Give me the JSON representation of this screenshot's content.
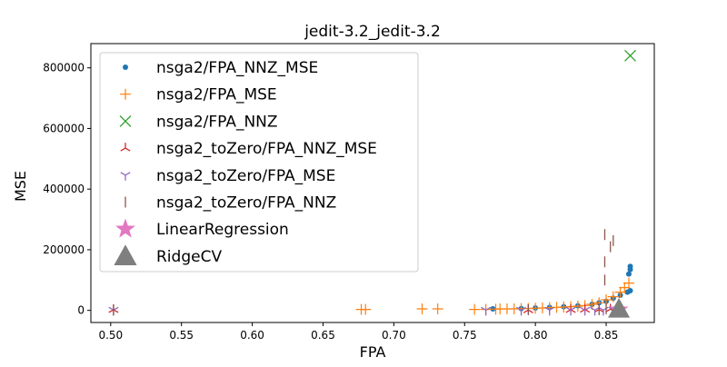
{
  "chart_data": {
    "type": "scatter",
    "title": "jedit-3.2_jedit-3.2",
    "xlabel": "FPA",
    "ylabel": "MSE",
    "xlim": [
      0.486,
      0.884
    ],
    "ylim": [
      -40000,
      880000
    ],
    "xticks": [
      0.5,
      0.55,
      0.6,
      0.65,
      0.7,
      0.75,
      0.8,
      0.85
    ],
    "xtick_labels": [
      "0.50",
      "0.55",
      "0.60",
      "0.65",
      "0.70",
      "0.75",
      "0.80",
      "0.85"
    ],
    "yticks": [
      0,
      200000,
      400000,
      600000,
      800000
    ],
    "ytick_labels": [
      "0",
      "200000",
      "400000",
      "600000",
      "800000"
    ],
    "grid": false,
    "legend_position": "upper-left",
    "series": [
      {
        "name": "nsga2/FPA_NNZ_MSE",
        "marker": "circle",
        "color": "#1f77b4",
        "points": [
          [
            0.77,
            5000
          ],
          [
            0.79,
            6000
          ],
          [
            0.8,
            8000
          ],
          [
            0.81,
            10000
          ],
          [
            0.82,
            12000
          ],
          [
            0.83,
            15000
          ],
          [
            0.84,
            20000
          ],
          [
            0.845,
            25000
          ],
          [
            0.85,
            30000
          ],
          [
            0.855,
            40000
          ],
          [
            0.86,
            50000
          ],
          [
            0.865,
            60000
          ],
          [
            0.867,
            65000
          ],
          [
            0.866,
            120000
          ],
          [
            0.867,
            135000
          ],
          [
            0.867,
            145000
          ]
        ]
      },
      {
        "name": "nsga2/FPA_MSE",
        "marker": "plus",
        "color": "#ff7f0e",
        "points": [
          [
            0.677,
            3000
          ],
          [
            0.68,
            3000
          ],
          [
            0.72,
            5000
          ],
          [
            0.731,
            5000
          ],
          [
            0.757,
            3000
          ],
          [
            0.765,
            3000
          ],
          [
            0.772,
            4000
          ],
          [
            0.775,
            5000
          ],
          [
            0.78,
            5000
          ],
          [
            0.785,
            5000
          ],
          [
            0.79,
            6000
          ],
          [
            0.795,
            6000
          ],
          [
            0.8,
            7000
          ],
          [
            0.805,
            8000
          ],
          [
            0.81,
            9000
          ],
          [
            0.815,
            10000
          ],
          [
            0.82,
            11000
          ],
          [
            0.825,
            12000
          ],
          [
            0.83,
            14000
          ],
          [
            0.835,
            16000
          ],
          [
            0.84,
            20000
          ],
          [
            0.845,
            25000
          ],
          [
            0.85,
            35000
          ],
          [
            0.855,
            45000
          ],
          [
            0.86,
            60000
          ],
          [
            0.863,
            75000
          ],
          [
            0.866,
            90000
          ]
        ]
      },
      {
        "name": "nsga2/FPA_NNZ",
        "marker": "x",
        "color": "#2ca02c",
        "points": [
          [
            0.867,
            840000
          ]
        ]
      },
      {
        "name": "nsga2_toZero/FPA_NNZ_MSE",
        "marker": "tri_down",
        "color": "#d62728",
        "points": [
          [
            0.502,
            2000
          ],
          [
            0.795,
            1000
          ],
          [
            0.825,
            2000
          ],
          [
            0.835,
            3000
          ],
          [
            0.845,
            3000
          ],
          [
            0.853,
            4000
          ]
        ]
      },
      {
        "name": "nsga2_toZero/FPA_MSE",
        "marker": "tri_up",
        "color": "#9467bd",
        "points": [
          [
            0.502,
            1000
          ],
          [
            0.765,
            1000
          ],
          [
            0.79,
            1000
          ],
          [
            0.81,
            1000
          ],
          [
            0.825,
            1000
          ],
          [
            0.835,
            1000
          ],
          [
            0.842,
            1000
          ],
          [
            0.848,
            1000
          ],
          [
            0.855,
            2000
          ],
          [
            0.86,
            2000
          ]
        ]
      },
      {
        "name": "nsga2_toZero/FPA_NNZ",
        "marker": "vline",
        "color": "#8c564b",
        "points": [
          [
            0.502,
            1000
          ],
          [
            0.795,
            2000
          ],
          [
            0.845,
            2000
          ],
          [
            0.85,
            5000
          ],
          [
            0.849,
            100000
          ],
          [
            0.849,
            160000
          ],
          [
            0.849,
            250000
          ],
          [
            0.853,
            210000
          ],
          [
            0.855,
            230000
          ]
        ]
      },
      {
        "name": "LinearRegression",
        "marker": "star",
        "color": "#e377c2",
        "points": [
          [
            0.859,
            2000
          ]
        ]
      },
      {
        "name": "RidgeCV",
        "marker": "triangle",
        "color": "#7f7f7f",
        "points": [
          [
            0.859,
            5000
          ]
        ]
      }
    ]
  }
}
